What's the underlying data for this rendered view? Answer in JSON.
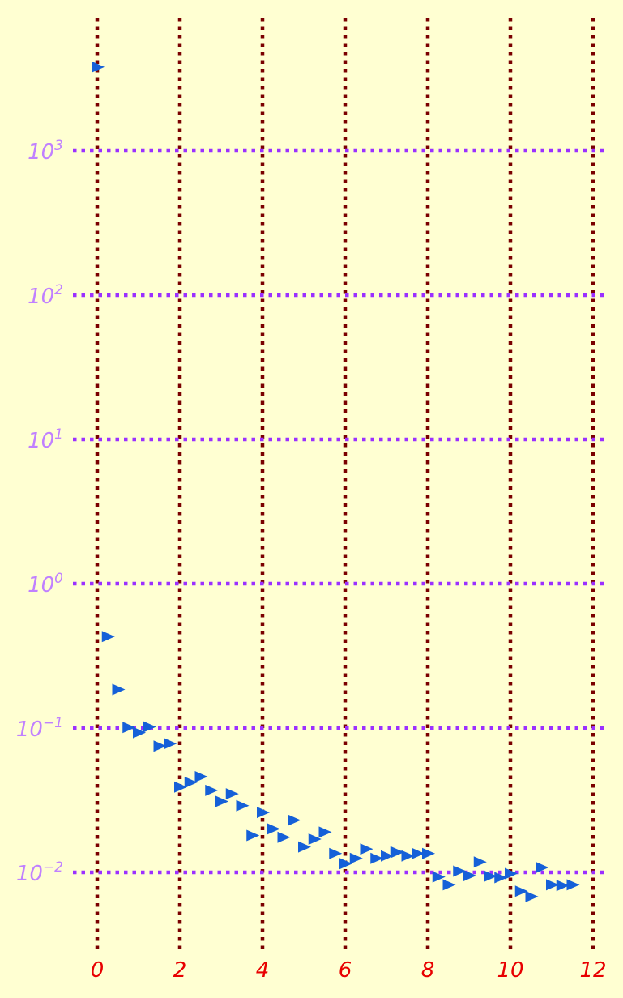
{
  "chart_data": {
    "type": "scatter",
    "marker": "triangle-right",
    "yscale": "log",
    "grid": true,
    "xlim": [
      0,
      12
    ],
    "ylim": [
      0.0031,
      5800
    ],
    "x_ticks": [
      0,
      2,
      4,
      6,
      8,
      10,
      12
    ],
    "y_ticks": [
      {
        "base": "10",
        "exp": "3",
        "value": 1000
      },
      {
        "base": "10",
        "exp": "2",
        "value": 100
      },
      {
        "base": "10",
        "exp": "1",
        "value": 10
      },
      {
        "base": "10",
        "exp": "0",
        "value": 1
      },
      {
        "base": "10",
        "exp": "−1",
        "value": 0.1
      },
      {
        "base": "10",
        "exp": "−2",
        "value": 0.01
      }
    ],
    "colors": {
      "background": "#ffffd2",
      "marker": "#1560d8",
      "x_grid": "#7a0000",
      "y_grid": "#9b30ff",
      "x_tick_text": "#e80000",
      "y_tick_text": "#c080ff"
    },
    "series": [
      {
        "points": [
          [
            0,
            3800
          ],
          [
            0.25,
            0.43
          ],
          [
            0.5,
            0.185
          ],
          [
            0.75,
            0.101
          ],
          [
            1.0,
            0.093
          ],
          [
            1.25,
            0.102
          ],
          [
            1.5,
            0.075
          ],
          [
            1.75,
            0.078
          ],
          [
            2.0,
            0.039
          ],
          [
            2.25,
            0.042
          ],
          [
            2.5,
            0.046
          ],
          [
            2.75,
            0.037
          ],
          [
            3.0,
            0.031
          ],
          [
            3.25,
            0.035
          ],
          [
            3.5,
            0.029
          ],
          [
            3.75,
            0.018
          ],
          [
            4.0,
            0.026
          ],
          [
            4.25,
            0.02
          ],
          [
            4.5,
            0.0175
          ],
          [
            4.75,
            0.023
          ],
          [
            5.0,
            0.015
          ],
          [
            5.25,
            0.017
          ],
          [
            5.5,
            0.019
          ],
          [
            5.75,
            0.0135
          ],
          [
            6.0,
            0.0115
          ],
          [
            6.25,
            0.0125
          ],
          [
            6.5,
            0.0145
          ],
          [
            6.75,
            0.0125
          ],
          [
            7.0,
            0.013
          ],
          [
            7.25,
            0.0138
          ],
          [
            7.5,
            0.013
          ],
          [
            7.75,
            0.0135
          ],
          [
            8.0,
            0.0135
          ],
          [
            8.25,
            0.0093
          ],
          [
            8.5,
            0.0082
          ],
          [
            8.75,
            0.0102
          ],
          [
            9.0,
            0.0095
          ],
          [
            9.25,
            0.0118
          ],
          [
            9.5,
            0.0094
          ],
          [
            9.75,
            0.0092
          ],
          [
            10.0,
            0.0098
          ],
          [
            10.25,
            0.0074
          ],
          [
            10.5,
            0.0068
          ],
          [
            10.75,
            0.0108
          ],
          [
            11.0,
            0.0082
          ],
          [
            11.25,
            0.0081
          ],
          [
            11.5,
            0.0082
          ]
        ]
      }
    ]
  }
}
